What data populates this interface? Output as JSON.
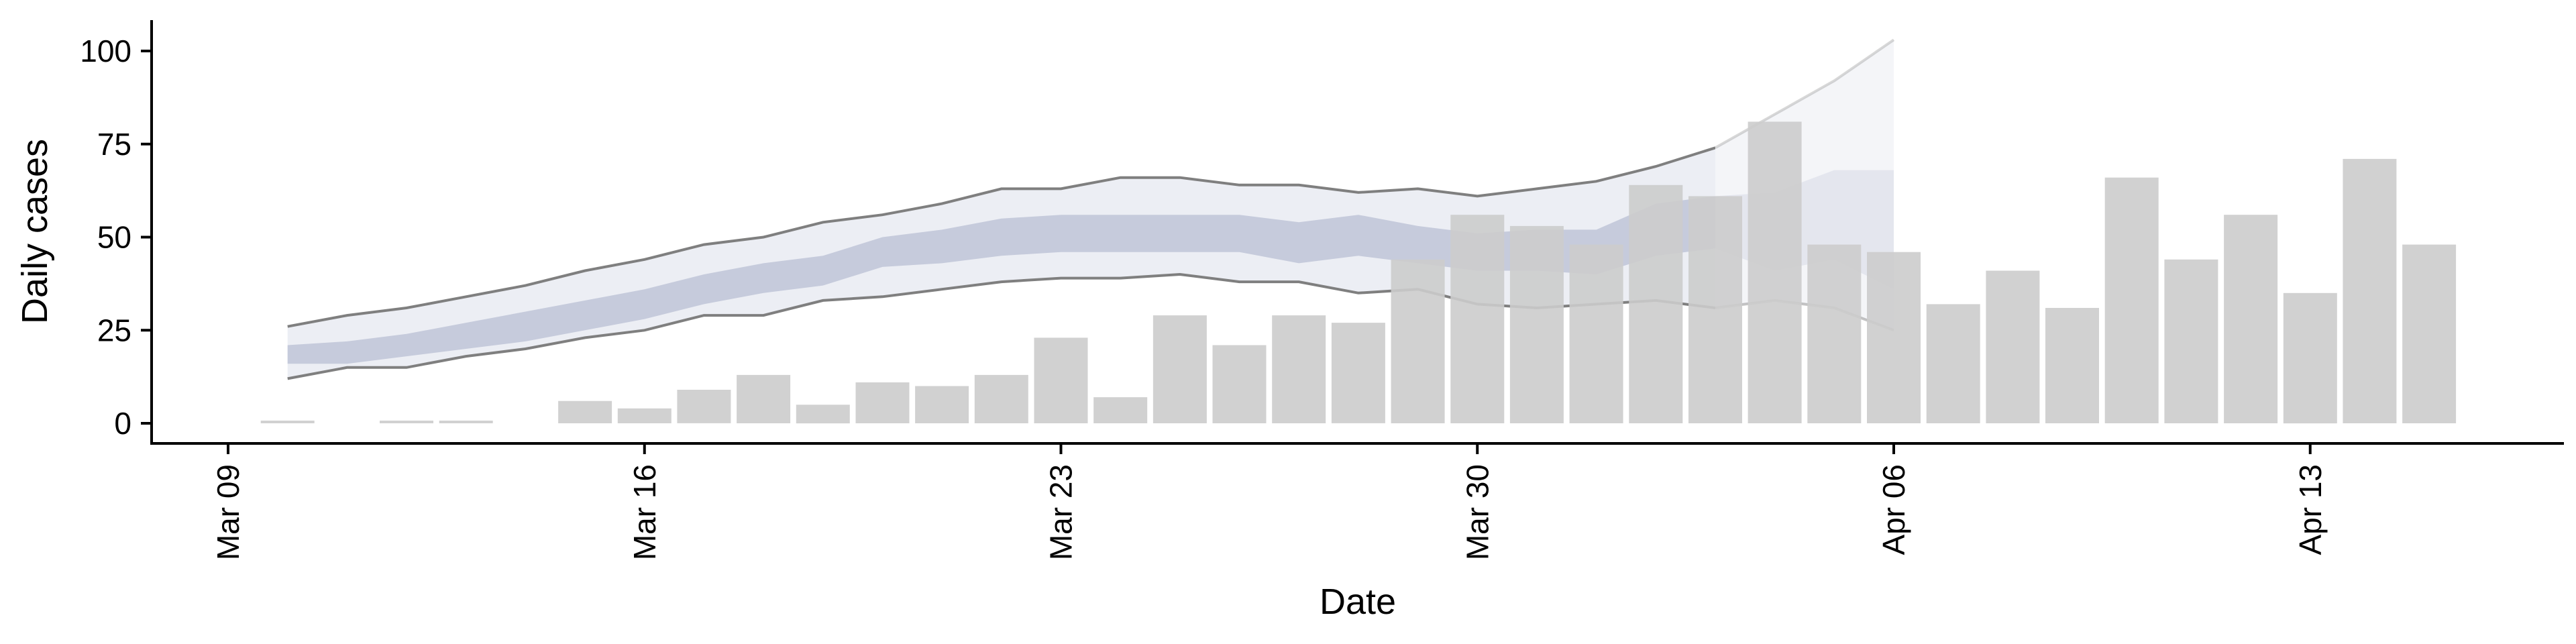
{
  "chart_data": {
    "type": "bar",
    "title": "",
    "xlabel": "Date",
    "ylabel": "Daily cases",
    "ylim": [
      0,
      105
    ],
    "xlim": [
      "2020-03-08",
      "2020-04-19"
    ],
    "grid": false,
    "legend": "none",
    "colors": {
      "bars": "#cccccc",
      "outer_band": "#eceef4",
      "inner_band": "#c6cbdc",
      "band_lines": "#7f7f7f",
      "forecast_band": "#f4f5f8",
      "axes": "#000000"
    },
    "y_ticks": [
      0,
      25,
      50,
      75,
      100
    ],
    "x_ticks": [
      {
        "date": "2020-03-09",
        "label": "Mar 09"
      },
      {
        "date": "2020-03-16",
        "label": "Mar 16"
      },
      {
        "date": "2020-03-23",
        "label": "Mar 23"
      },
      {
        "date": "2020-03-30",
        "label": "Mar 30"
      },
      {
        "date": "2020-04-06",
        "label": "Apr 06"
      },
      {
        "date": "2020-04-13",
        "label": "Apr 13"
      }
    ],
    "bars": [
      {
        "date": "2020-03-10",
        "value": 0
      },
      {
        "date": "2020-03-12",
        "value": 0
      },
      {
        "date": "2020-03-13",
        "value": 0
      },
      {
        "date": "2020-03-15",
        "value": 6
      },
      {
        "date": "2020-03-16",
        "value": 4
      },
      {
        "date": "2020-03-17",
        "value": 9
      },
      {
        "date": "2020-03-18",
        "value": 13
      },
      {
        "date": "2020-03-19",
        "value": 5
      },
      {
        "date": "2020-03-20",
        "value": 11
      },
      {
        "date": "2020-03-21",
        "value": 10
      },
      {
        "date": "2020-03-22",
        "value": 13
      },
      {
        "date": "2020-03-23",
        "value": 23
      },
      {
        "date": "2020-03-24",
        "value": 7
      },
      {
        "date": "2020-03-25",
        "value": 29
      },
      {
        "date": "2020-03-26",
        "value": 21
      },
      {
        "date": "2020-03-27",
        "value": 29
      },
      {
        "date": "2020-03-28",
        "value": 27
      },
      {
        "date": "2020-03-29",
        "value": 44
      },
      {
        "date": "2020-03-30",
        "value": 56
      },
      {
        "date": "2020-03-31",
        "value": 53
      },
      {
        "date": "2020-04-01",
        "value": 48
      },
      {
        "date": "2020-04-02",
        "value": 64
      },
      {
        "date": "2020-04-03",
        "value": 61
      },
      {
        "date": "2020-04-04",
        "value": 81
      },
      {
        "date": "2020-04-05",
        "value": 48
      },
      {
        "date": "2020-04-06",
        "value": 46
      },
      {
        "date": "2020-04-07",
        "value": 32
      },
      {
        "date": "2020-04-08",
        "value": 41
      },
      {
        "date": "2020-04-09",
        "value": 31
      },
      {
        "date": "2020-04-10",
        "value": 66
      },
      {
        "date": "2020-04-11",
        "value": 44
      },
      {
        "date": "2020-04-12",
        "value": 56
      },
      {
        "date": "2020-04-13",
        "value": 35
      },
      {
        "date": "2020-04-14",
        "value": 71
      },
      {
        "date": "2020-04-15",
        "value": 48
      }
    ],
    "estimate": [
      {
        "date": "2020-03-10",
        "outer_low": 12,
        "outer_high": 26,
        "inner_low": 16,
        "inner_high": 21
      },
      {
        "date": "2020-03-11",
        "outer_low": 15,
        "outer_high": 29,
        "inner_low": 16,
        "inner_high": 22
      },
      {
        "date": "2020-03-12",
        "outer_low": 15,
        "outer_high": 31,
        "inner_low": 18,
        "inner_high": 24
      },
      {
        "date": "2020-03-13",
        "outer_low": 18,
        "outer_high": 34,
        "inner_low": 20,
        "inner_high": 27
      },
      {
        "date": "2020-03-14",
        "outer_low": 20,
        "outer_high": 37,
        "inner_low": 22,
        "inner_high": 30
      },
      {
        "date": "2020-03-15",
        "outer_low": 23,
        "outer_high": 41,
        "inner_low": 25,
        "inner_high": 33
      },
      {
        "date": "2020-03-16",
        "outer_low": 25,
        "outer_high": 44,
        "inner_low": 28,
        "inner_high": 36
      },
      {
        "date": "2020-03-17",
        "outer_low": 29,
        "outer_high": 48,
        "inner_low": 32,
        "inner_high": 40
      },
      {
        "date": "2020-03-18",
        "outer_low": 29,
        "outer_high": 50,
        "inner_low": 35,
        "inner_high": 43
      },
      {
        "date": "2020-03-19",
        "outer_low": 33,
        "outer_high": 54,
        "inner_low": 37,
        "inner_high": 45
      },
      {
        "date": "2020-03-20",
        "outer_low": 34,
        "outer_high": 56,
        "inner_low": 42,
        "inner_high": 50
      },
      {
        "date": "2020-03-21",
        "outer_low": 36,
        "outer_high": 59,
        "inner_low": 43,
        "inner_high": 52
      },
      {
        "date": "2020-03-22",
        "outer_low": 38,
        "outer_high": 63,
        "inner_low": 45,
        "inner_high": 55
      },
      {
        "date": "2020-03-23",
        "outer_low": 39,
        "outer_high": 63,
        "inner_low": 46,
        "inner_high": 56
      },
      {
        "date": "2020-03-24",
        "outer_low": 39,
        "outer_high": 66,
        "inner_low": 46,
        "inner_high": 56
      },
      {
        "date": "2020-03-25",
        "outer_low": 40,
        "outer_high": 66,
        "inner_low": 46,
        "inner_high": 56
      },
      {
        "date": "2020-03-26",
        "outer_low": 38,
        "outer_high": 64,
        "inner_low": 46,
        "inner_high": 56
      },
      {
        "date": "2020-03-27",
        "outer_low": 38,
        "outer_high": 64,
        "inner_low": 43,
        "inner_high": 54
      },
      {
        "date": "2020-03-28",
        "outer_low": 35,
        "outer_high": 62,
        "inner_low": 45,
        "inner_high": 56
      },
      {
        "date": "2020-03-29",
        "outer_low": 36,
        "outer_high": 63,
        "inner_low": 43,
        "inner_high": 53
      },
      {
        "date": "2020-03-30",
        "outer_low": 32,
        "outer_high": 61,
        "inner_low": 41,
        "inner_high": 51
      },
      {
        "date": "2020-03-31",
        "outer_low": 31,
        "outer_high": 63,
        "inner_low": 41,
        "inner_high": 52
      },
      {
        "date": "2020-04-01",
        "outer_low": 32,
        "outer_high": 65,
        "inner_low": 40,
        "inner_high": 52
      },
      {
        "date": "2020-04-02",
        "outer_low": 33,
        "outer_high": 69,
        "inner_low": 45,
        "inner_high": 59
      },
      {
        "date": "2020-04-03",
        "outer_low": 31,
        "outer_high": 74,
        "inner_low": 47,
        "inner_high": 61
      }
    ],
    "forecast": [
      {
        "date": "2020-04-03",
        "outer_low": 31,
        "outer_high": 74,
        "inner_low": 47,
        "inner_high": 61
      },
      {
        "date": "2020-04-04",
        "outer_low": 33,
        "outer_high": 83,
        "inner_low": 41,
        "inner_high": 62
      },
      {
        "date": "2020-04-05",
        "outer_low": 31,
        "outer_high": 92,
        "inner_low": 44,
        "inner_high": 68
      },
      {
        "date": "2020-04-06",
        "outer_low": 25,
        "outer_high": 103,
        "inner_low": 36,
        "inner_high": 68
      }
    ]
  }
}
